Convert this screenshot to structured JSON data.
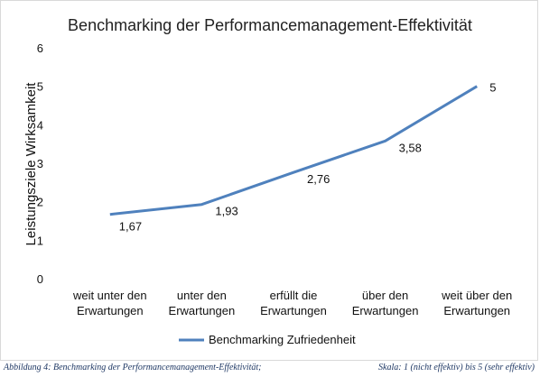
{
  "chart_data": {
    "type": "line",
    "title": "Benchmarking der Performancemanagement-Effektivität",
    "ylabel": "Leistungsziele Wirksamkeit",
    "xlabel": "",
    "categories": [
      [
        "weit unter den",
        "Erwartungen"
      ],
      [
        "unter den",
        "Erwartungen"
      ],
      [
        "erfüllt die",
        "Erwartungen"
      ],
      [
        "über den",
        "Erwartungen"
      ],
      [
        "weit über den",
        "Erwartungen"
      ]
    ],
    "series": [
      {
        "name": "Benchmarking Zufriedenheit",
        "values": [
          1.67,
          1.93,
          2.76,
          3.58,
          5
        ],
        "labels": [
          "1,67",
          "1,93",
          "2,76",
          "3,58",
          "5"
        ],
        "color": "#4f81bd"
      }
    ],
    "ylim": [
      0,
      6
    ],
    "yticks": [
      0,
      1,
      2,
      3,
      4,
      5,
      6
    ],
    "grid": false,
    "legend": "bottom"
  },
  "caption": {
    "left": "Abbildung 4: Benchmarking der Performancemanagement-Effektivität;",
    "right": "Skala: 1 (nicht effektiv) bis 5 (sehr effektiv)"
  }
}
